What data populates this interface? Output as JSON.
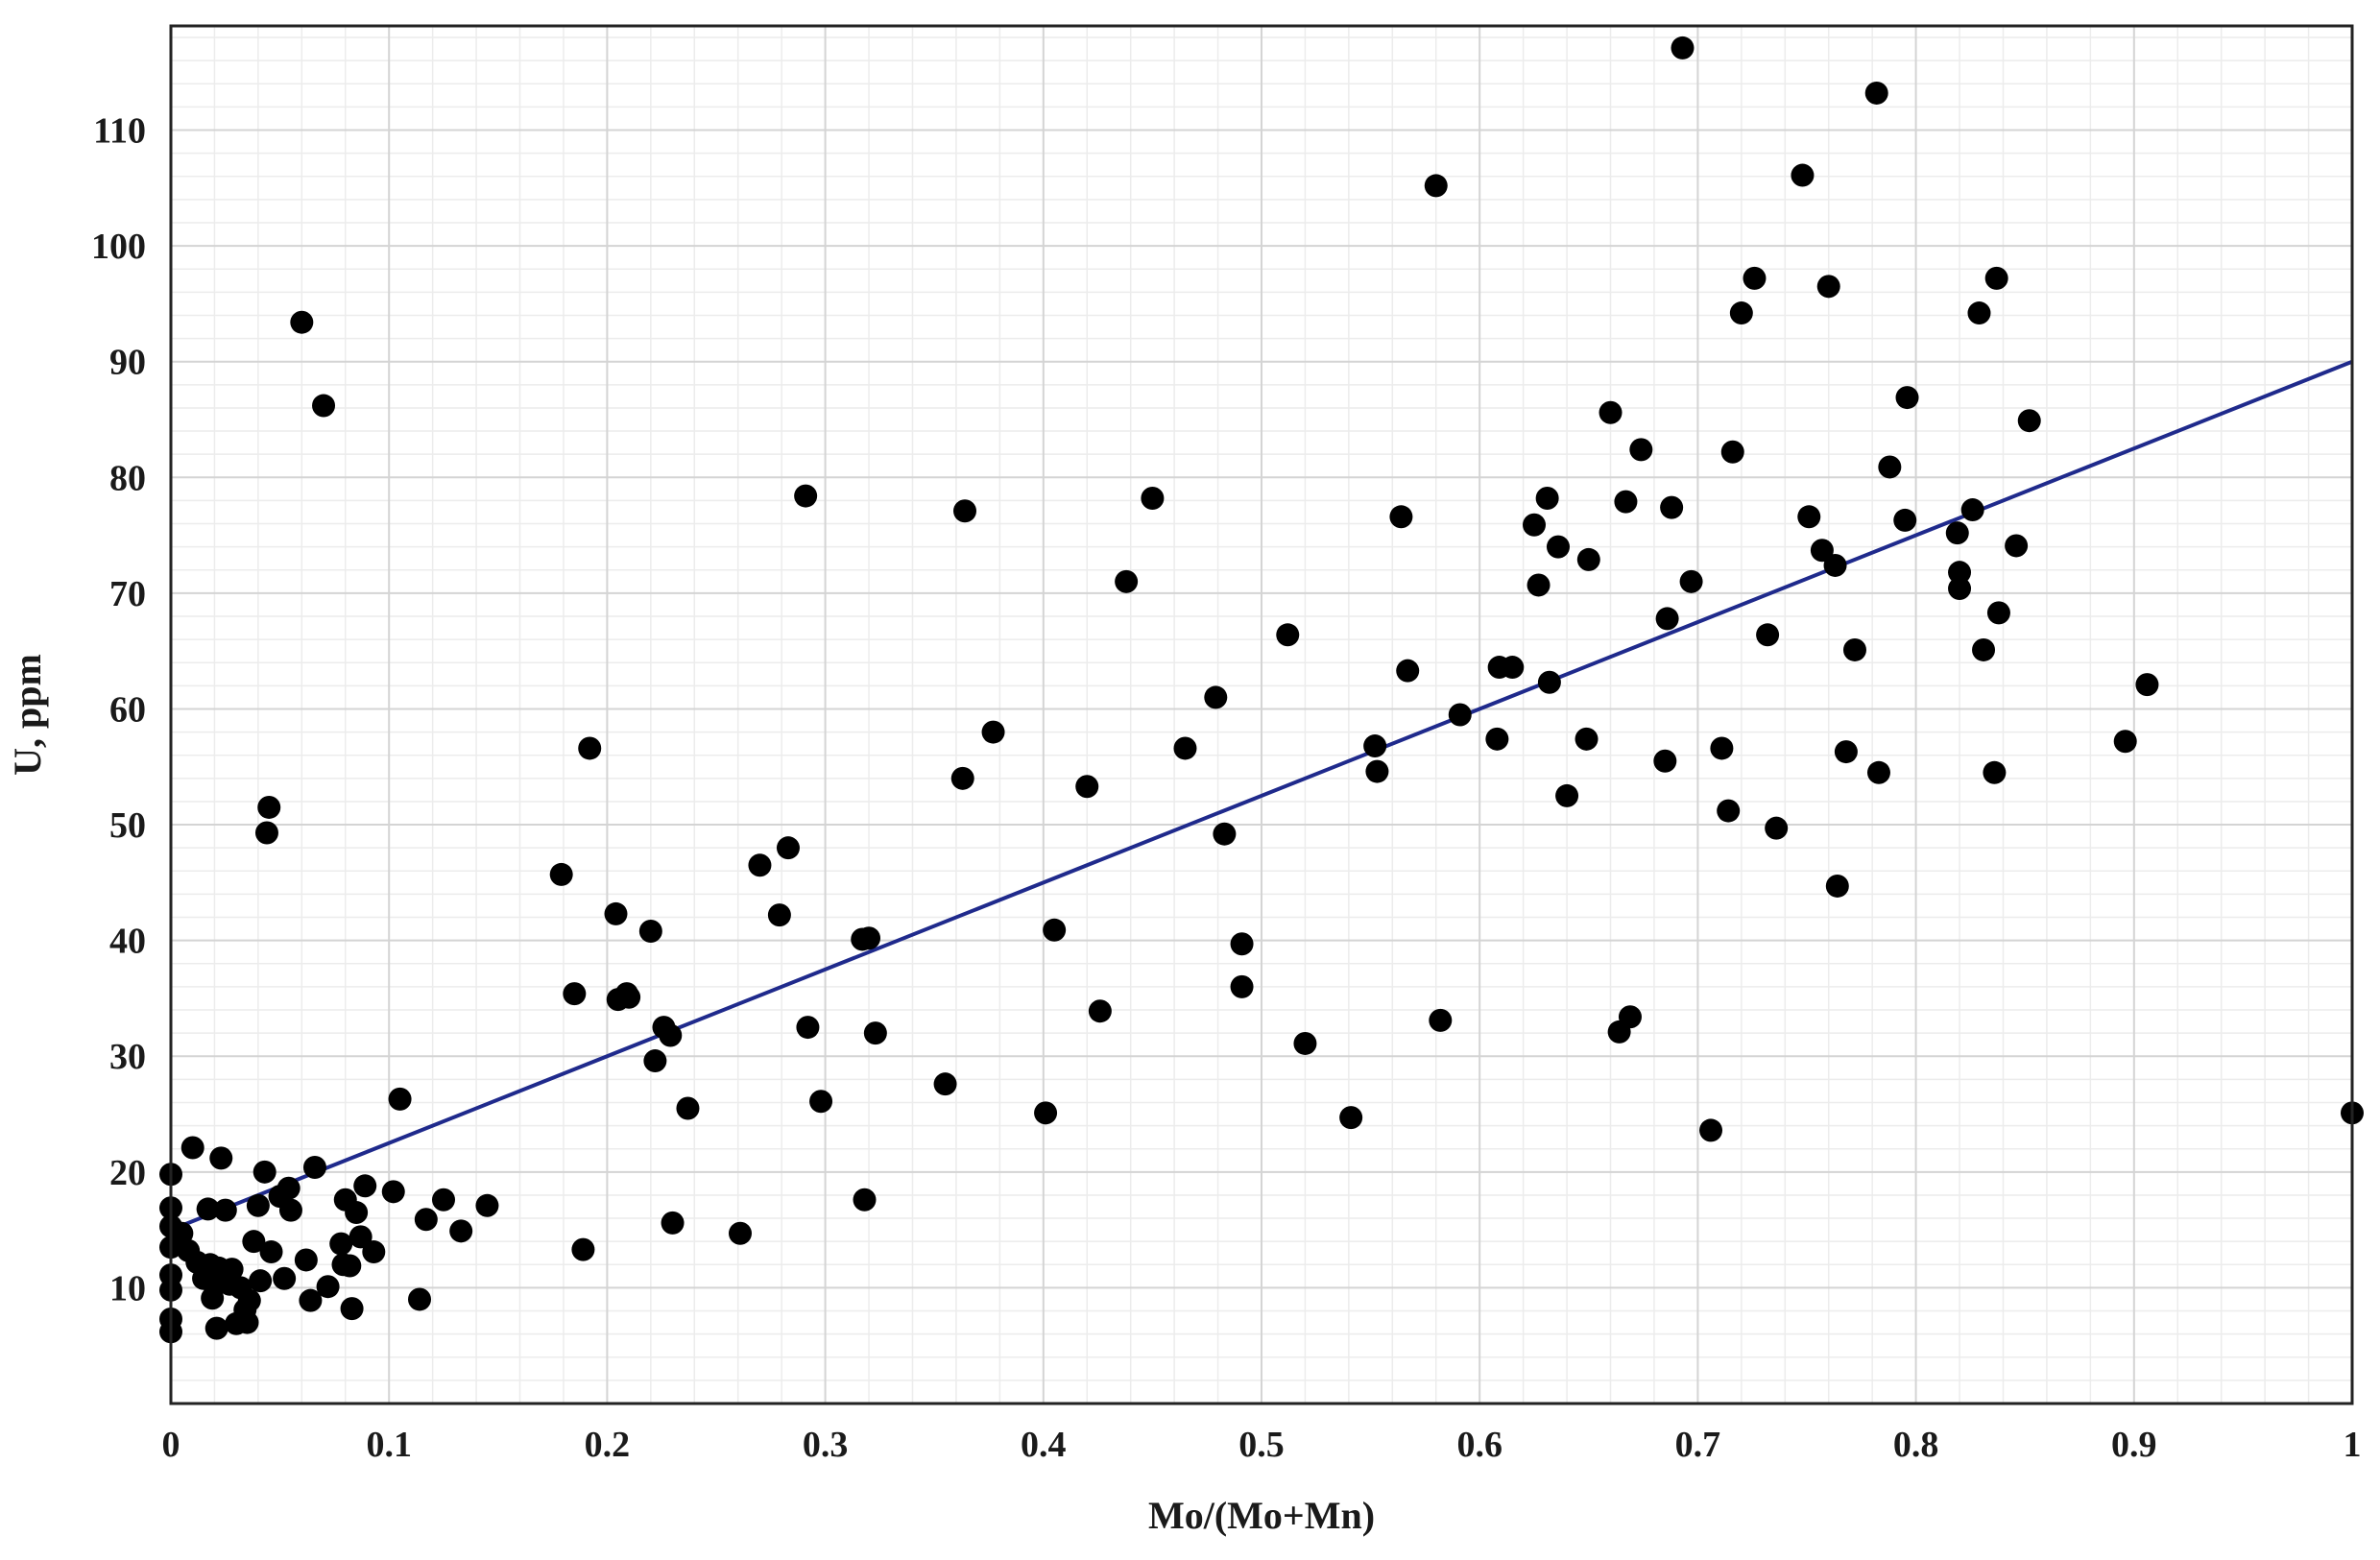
{
  "chart_data": {
    "type": "scatter",
    "title": "",
    "xlabel": "Mo/(Mo+Mn)",
    "ylabel": "U, ppm",
    "xlim": [
      0,
      1
    ],
    "ylim": [
      0,
      119
    ],
    "x_ticks": [
      {
        "value": 0,
        "label": "0"
      },
      {
        "value": 0.1,
        "label": "0.1"
      },
      {
        "value": 0.2,
        "label": "0.2"
      },
      {
        "value": 0.3,
        "label": "0.3"
      },
      {
        "value": 0.4,
        "label": "0.4"
      },
      {
        "value": 0.5,
        "label": "0.5"
      },
      {
        "value": 0.6,
        "label": "0.6"
      },
      {
        "value": 0.7,
        "label": "0.7"
      },
      {
        "value": 0.8,
        "label": "0.8"
      },
      {
        "value": 0.9,
        "label": "0.9"
      },
      {
        "value": 1,
        "label": "1"
      }
    ],
    "y_ticks": [
      {
        "value": 10,
        "label": "10"
      },
      {
        "value": 20,
        "label": "20"
      },
      {
        "value": 30,
        "label": "30"
      },
      {
        "value": 40,
        "label": "40"
      },
      {
        "value": 50,
        "label": "50"
      },
      {
        "value": 60,
        "label": "60"
      },
      {
        "value": 70,
        "label": "70"
      },
      {
        "value": 80,
        "label": "80"
      },
      {
        "value": 90,
        "label": "90"
      },
      {
        "value": 100,
        "label": "100"
      },
      {
        "value": 110,
        "label": "110"
      }
    ],
    "grid": true,
    "legend": "none",
    "colors": {
      "points": "#000000",
      "trendline": "#1f2a8c",
      "grid": "#d4d4d4",
      "frame": "#222222"
    },
    "trendline": {
      "x": [
        0,
        1
      ],
      "y": [
        15.0,
        90.0
      ]
    },
    "points": [
      [
        0.0,
        6.2
      ],
      [
        0.0,
        7.3
      ],
      [
        0.0,
        9.8
      ],
      [
        0.0,
        11.1
      ],
      [
        0.0,
        13.5
      ],
      [
        0.0,
        15.3
      ],
      [
        0.0,
        16.9
      ],
      [
        0.0,
        19.8
      ],
      [
        0.005,
        14.7
      ],
      [
        0.008,
        13.2
      ],
      [
        0.01,
        22.1
      ],
      [
        0.012,
        12.2
      ],
      [
        0.015,
        10.8
      ],
      [
        0.017,
        16.8
      ],
      [
        0.018,
        12.0
      ],
      [
        0.019,
        9.1
      ],
      [
        0.02,
        10.2
      ],
      [
        0.021,
        6.5
      ],
      [
        0.022,
        11.7
      ],
      [
        0.023,
        21.2
      ],
      [
        0.025,
        16.7
      ],
      [
        0.027,
        10.3
      ],
      [
        0.028,
        11.6
      ],
      [
        0.03,
        6.9
      ],
      [
        0.032,
        10.0
      ],
      [
        0.034,
        8.1
      ],
      [
        0.035,
        7.0
      ],
      [
        0.036,
        8.9
      ],
      [
        0.038,
        14.0
      ],
      [
        0.04,
        17.1
      ],
      [
        0.041,
        10.6
      ],
      [
        0.043,
        20.0
      ],
      [
        0.044,
        49.3
      ],
      [
        0.045,
        51.5
      ],
      [
        0.046,
        13.1
      ],
      [
        0.05,
        17.9
      ],
      [
        0.052,
        10.8
      ],
      [
        0.054,
        18.6
      ],
      [
        0.055,
        16.7
      ],
      [
        0.06,
        93.4
      ],
      [
        0.062,
        12.4
      ],
      [
        0.064,
        8.9
      ],
      [
        0.066,
        20.4
      ],
      [
        0.07,
        86.2
      ],
      [
        0.072,
        10.1
      ],
      [
        0.078,
        13.8
      ],
      [
        0.079,
        12.0
      ],
      [
        0.08,
        17.6
      ],
      [
        0.082,
        11.9
      ],
      [
        0.083,
        8.2
      ],
      [
        0.085,
        16.5
      ],
      [
        0.087,
        14.4
      ],
      [
        0.089,
        18.8
      ],
      [
        0.093,
        13.1
      ],
      [
        0.102,
        18.3
      ],
      [
        0.105,
        26.3
      ],
      [
        0.114,
        9.0
      ],
      [
        0.117,
        15.9
      ],
      [
        0.125,
        17.6
      ],
      [
        0.133,
        14.9
      ],
      [
        0.145,
        17.1
      ],
      [
        0.179,
        45.7
      ],
      [
        0.185,
        35.4
      ],
      [
        0.189,
        13.3
      ],
      [
        0.192,
        56.6
      ],
      [
        0.204,
        42.3
      ],
      [
        0.205,
        34.9
      ],
      [
        0.209,
        35.4
      ],
      [
        0.21,
        35.1
      ],
      [
        0.22,
        40.8
      ],
      [
        0.222,
        29.6
      ],
      [
        0.226,
        32.5
      ],
      [
        0.229,
        31.8
      ],
      [
        0.23,
        15.6
      ],
      [
        0.237,
        25.5
      ],
      [
        0.261,
        14.7
      ],
      [
        0.27,
        46.5
      ],
      [
        0.279,
        42.2
      ],
      [
        0.283,
        48.0
      ],
      [
        0.291,
        78.4
      ],
      [
        0.292,
        32.5
      ],
      [
        0.298,
        26.1
      ],
      [
        0.317,
        40.1
      ],
      [
        0.318,
        17.6
      ],
      [
        0.32,
        40.2
      ],
      [
        0.323,
        32.0
      ],
      [
        0.355,
        27.6
      ],
      [
        0.363,
        54.0
      ],
      [
        0.364,
        77.1
      ],
      [
        0.377,
        58.0
      ],
      [
        0.401,
        25.1
      ],
      [
        0.405,
        40.9
      ],
      [
        0.42,
        53.3
      ],
      [
        0.426,
        33.9
      ],
      [
        0.438,
        71.0
      ],
      [
        0.45,
        78.2
      ],
      [
        0.465,
        56.6
      ],
      [
        0.479,
        61.0
      ],
      [
        0.483,
        49.2
      ],
      [
        0.491,
        39.7
      ],
      [
        0.491,
        36.0
      ],
      [
        0.512,
        66.4
      ],
      [
        0.52,
        31.1
      ],
      [
        0.541,
        24.7
      ],
      [
        0.552,
        56.8
      ],
      [
        0.553,
        54.6
      ],
      [
        0.564,
        76.6
      ],
      [
        0.567,
        63.3
      ],
      [
        0.58,
        105.2
      ],
      [
        0.582,
        33.1
      ],
      [
        0.591,
        59.5
      ],
      [
        0.608,
        57.4
      ],
      [
        0.609,
        63.6
      ],
      [
        0.615,
        63.6
      ],
      [
        0.625,
        75.9
      ],
      [
        0.627,
        70.7
      ],
      [
        0.631,
        78.2
      ],
      [
        0.632,
        62.3
      ],
      [
        0.636,
        74.0
      ],
      [
        0.64,
        52.5
      ],
      [
        0.649,
        57.4
      ],
      [
        0.65,
        72.9
      ],
      [
        0.66,
        85.6
      ],
      [
        0.664,
        32.1
      ],
      [
        0.667,
        77.9
      ],
      [
        0.669,
        33.4
      ],
      [
        0.674,
        82.4
      ],
      [
        0.685,
        55.5
      ],
      [
        0.686,
        67.8
      ],
      [
        0.688,
        77.4
      ],
      [
        0.693,
        117.1
      ],
      [
        0.697,
        71.0
      ],
      [
        0.706,
        23.6
      ],
      [
        0.711,
        56.6
      ],
      [
        0.714,
        51.2
      ],
      [
        0.716,
        82.2
      ],
      [
        0.72,
        94.2
      ],
      [
        0.726,
        97.2
      ],
      [
        0.732,
        66.4
      ],
      [
        0.736,
        49.7
      ],
      [
        0.748,
        106.1
      ],
      [
        0.751,
        76.6
      ],
      [
        0.757,
        73.7
      ],
      [
        0.76,
        96.5
      ],
      [
        0.763,
        72.4
      ],
      [
        0.764,
        44.7
      ],
      [
        0.768,
        56.3
      ],
      [
        0.772,
        65.1
      ],
      [
        0.782,
        113.2
      ],
      [
        0.783,
        54.5
      ],
      [
        0.788,
        80.9
      ],
      [
        0.795,
        76.3
      ],
      [
        0.796,
        86.9
      ],
      [
        0.819,
        75.2
      ],
      [
        0.82,
        70.4
      ],
      [
        0.82,
        71.8
      ],
      [
        0.826,
        77.2
      ],
      [
        0.829,
        94.2
      ],
      [
        0.831,
        65.1
      ],
      [
        0.836,
        54.5
      ],
      [
        0.837,
        97.2
      ],
      [
        0.838,
        68.3
      ],
      [
        0.846,
        74.1
      ],
      [
        0.852,
        84.9
      ],
      [
        0.896,
        57.2
      ],
      [
        0.906,
        62.1
      ],
      [
        1.0,
        25.1
      ]
    ]
  }
}
